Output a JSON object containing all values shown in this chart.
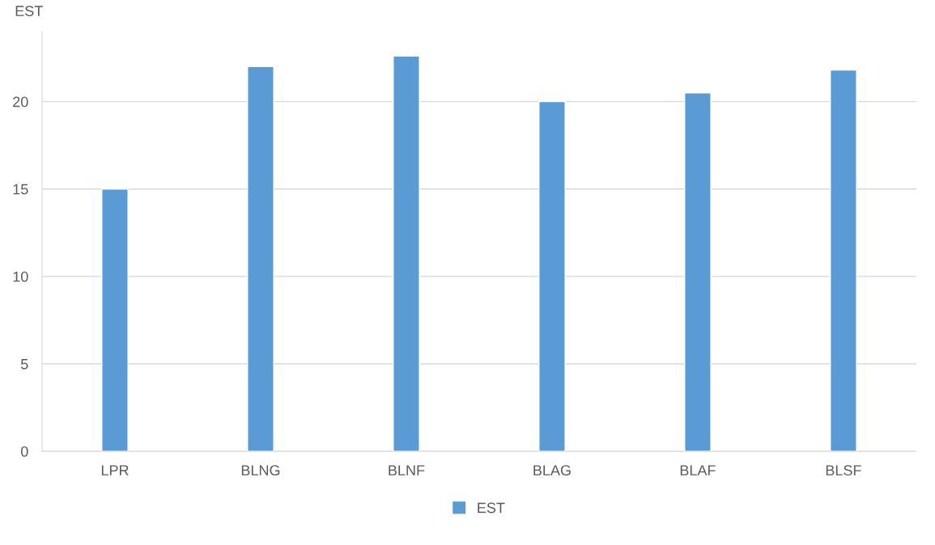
{
  "chart_data": {
    "type": "bar",
    "ylabel": "EST",
    "categories": [
      "LPR",
      "BLNG",
      "BLNF",
      "BLAG",
      "BLAF",
      "BLSF"
    ],
    "series": [
      {
        "name": "EST",
        "color": "#5b9bd5",
        "values": [
          15.0,
          22.0,
          22.6,
          20.0,
          20.5,
          21.8
        ]
      }
    ],
    "ylim": [
      0,
      24
    ],
    "yticks": [
      0,
      5,
      10,
      15,
      20
    ],
    "grid": "y",
    "legend": "bottom"
  }
}
